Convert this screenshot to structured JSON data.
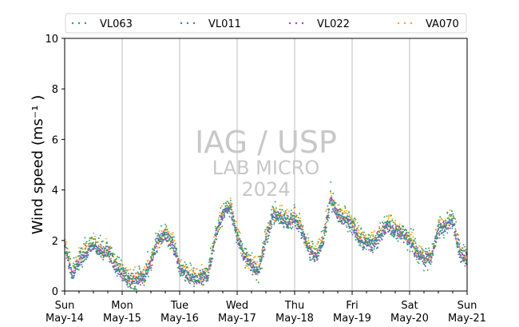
{
  "chart_data": {
    "type": "scatter",
    "ylabel": "Wind speed (ms⁻¹ )",
    "xlabel": "",
    "ylim": [
      0,
      10
    ],
    "yticks": [
      0,
      2,
      4,
      6,
      8,
      10
    ],
    "xlim": [
      "2023-05-14",
      "2023-05-21"
    ],
    "xticks": [
      {
        "day": "Sun",
        "date": "May-14"
      },
      {
        "day": "Mon",
        "date": "May-15"
      },
      {
        "day": "Tue",
        "date": "May-16"
      },
      {
        "day": "Wed",
        "date": "May-17"
      },
      {
        "day": "Thu",
        "date": "May-18"
      },
      {
        "day": "Fri",
        "date": "May-19"
      },
      {
        "day": "Sat",
        "date": "May-20"
      },
      {
        "day": "Sun",
        "date": "May-21"
      }
    ],
    "grid": "vertical",
    "legend_position": "top",
    "watermark": {
      "line1": "IAG / USP",
      "line2": "LAB MICRO",
      "line3": "2024"
    },
    "daily_profile": {
      "x_day_fraction": [
        0,
        0.125,
        0.25,
        0.375,
        0.5,
        0.625,
        0.75,
        0.875,
        1
      ],
      "y_ms": [
        [
          1.8,
          0.6,
          1.2,
          1.5,
          1.8,
          1.5,
          1.6,
          1.0,
          0.7
        ],
        [
          0.7,
          0.4,
          0.4,
          0.5,
          1.1,
          2.0,
          2.2,
          1.9,
          0.9
        ],
        [
          0.9,
          0.6,
          0.5,
          0.5,
          0.6,
          2.2,
          3.0,
          3.3,
          2.2
        ],
        [
          2.2,
          1.3,
          1.0,
          0.8,
          2.0,
          3.0,
          2.9,
          2.7,
          2.8
        ],
        [
          2.8,
          2.4,
          1.6,
          1.3,
          2.0,
          3.6,
          3.0,
          2.8,
          2.6
        ],
        [
          2.6,
          2.0,
          1.9,
          1.8,
          2.2,
          2.6,
          2.3,
          2.2,
          2.0
        ],
        [
          2.0,
          1.5,
          1.2,
          1.3,
          2.4,
          2.6,
          2.8,
          1.5,
          1.2
        ]
      ]
    },
    "series": [
      {
        "name": "VL063",
        "color": "#2ca25f",
        "offset": 0.1,
        "noise": 0.7
      },
      {
        "name": "VL011",
        "color": "#4575b4",
        "offset": 0.0,
        "noise": 0.4
      },
      {
        "name": "VL022",
        "color": "#984ea3",
        "offset": 0.0,
        "noise": 0.4
      },
      {
        "name": "VA070",
        "color": "#ff9f1c",
        "offset": 0.15,
        "noise": 0.5
      }
    ]
  }
}
